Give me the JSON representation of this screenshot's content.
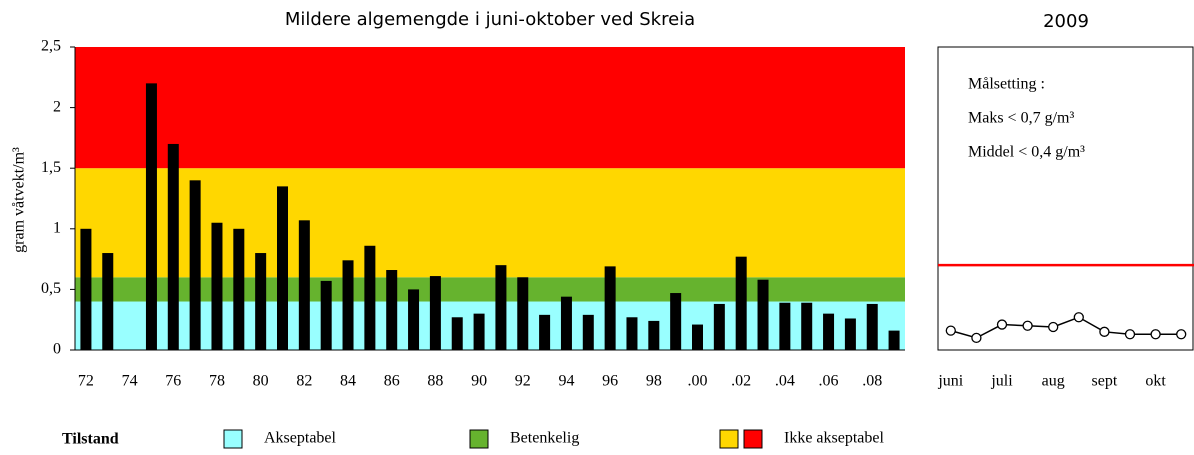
{
  "chart_data": [
    {
      "type": "bar",
      "title": "Mildere algemengde i juni-oktober ved Skreia",
      "y_label": "gram våtvekt/m³",
      "categories": [
        "72",
        null,
        "74",
        null,
        "76",
        null,
        "78",
        null,
        "80",
        null,
        "82",
        null,
        "84",
        null,
        "86",
        null,
        "88",
        null,
        "90",
        null,
        "92",
        null,
        "94",
        null,
        "96",
        null,
        "98",
        null,
        ".00",
        null,
        ".02",
        null,
        ".04",
        null,
        ".06",
        null,
        ".08",
        null
      ],
      "values": [
        1.0,
        0.8,
        null,
        2.2,
        1.7,
        1.4,
        1.05,
        1.0,
        0.8,
        1.35,
        1.07,
        0.57,
        0.74,
        0.86,
        0.66,
        0.5,
        0.61,
        0.27,
        0.3,
        0.7,
        0.6,
        0.29,
        0.44,
        0.29,
        0.69,
        0.27,
        0.24,
        0.47,
        0.21,
        0.38,
        0.77,
        0.58,
        0.39,
        0.39,
        0.3,
        0.26,
        0.38,
        0.16
      ],
      "color": "#000000",
      "ylim": [
        0,
        2.5
      ],
      "yticks": [
        0,
        {
          "value": 0.5,
          "label": "0,5"
        },
        1,
        {
          "value": 1.5,
          "label": "1,5"
        },
        2,
        {
          "value": 2.5,
          "label": "2,5"
        }
      ],
      "bands": [
        {
          "from": 0,
          "to": 0.4,
          "color": "#99ffff"
        },
        {
          "from": 0.4,
          "to": 0.6,
          "color": "#66b32e"
        },
        {
          "from": 0.6,
          "to": 1.5,
          "color": "#ffd700"
        },
        {
          "from": 1.5,
          "to": 2.5,
          "color": "#ff0000"
        }
      ],
      "legend": {
        "title": "Tilstand",
        "items": [
          {
            "label": "Akseptabel",
            "colors": [
              "#99ffff"
            ]
          },
          {
            "label": "Betenkelig",
            "colors": [
              "#66b32e"
            ]
          },
          {
            "label": "Ikke akseptabel",
            "colors": [
              "#ffd700",
              "#ff0000"
            ]
          }
        ]
      }
    },
    {
      "type": "line",
      "title": "2009",
      "categories": [
        "juni",
        null,
        "juli",
        null,
        "aug",
        null,
        "sept",
        null,
        "okt",
        null
      ],
      "values": [
        0.16,
        0.1,
        0.21,
        0.2,
        0.19,
        0.27,
        0.15,
        0.13,
        0.13,
        0.13
      ],
      "color": "#000000",
      "ylim": [
        0,
        2.5
      ],
      "target": 0.7,
      "target_color": "#ff0000",
      "annotations": [
        "Målsetting :",
        "Maks   < 0,7 g/m³",
        "Middel < 0,4 g/m³"
      ]
    }
  ]
}
